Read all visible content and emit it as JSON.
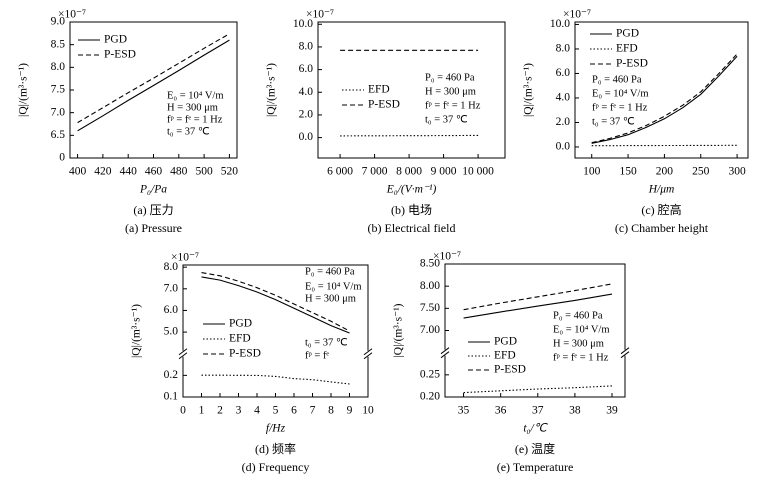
{
  "chart_data": [
    {
      "type": "line",
      "captions": [
        "(a) 压力",
        "(a) Pressure"
      ],
      "x_label": "P₀/Pa",
      "y_label": "|Q|/(m³·s⁻¹)",
      "y_multiplier": "×10⁻⁷",
      "x": [
        400,
        420,
        440,
        460,
        480,
        500,
        520
      ],
      "xlim": [
        394,
        526
      ],
      "xticks": [
        400,
        420,
        440,
        460,
        480,
        500,
        520
      ],
      "ylim": [
        0,
        9
      ],
      "yticks": [
        0,
        6.5,
        {
          "value": 7,
          "label": "7.0"
        },
        7.5,
        {
          "value": 8,
          "label": "8.0"
        },
        8.5,
        {
          "value": 9,
          "label": "9.0"
        }
      ],
      "ybreak": false,
      "series": [
        {
          "name": "PGD",
          "color": "#000000",
          "line_style": "solid",
          "values": [
            6.6,
            6.93,
            7.27,
            7.6,
            7.93,
            8.27,
            8.6
          ]
        },
        {
          "name": "P-ESD",
          "color": "#000000",
          "line_style": "dashed",
          "values": [
            6.78,
            7.11,
            7.44,
            7.76,
            8.09,
            8.42,
            8.74
          ]
        }
      ],
      "annotations": [
        "E₀ = 10⁴ V/m",
        "H = 300 μm",
        "fᵖ = fᵉ = 1 Hz",
        "t₀ = 37 ℃"
      ]
    },
    {
      "type": "line",
      "captions": [
        "(b) 电场",
        "(b) Electrical field"
      ],
      "x_label": "E₀/(V·m⁻¹)",
      "y_label": "|Q|/(m³·s⁻¹)",
      "y_multiplier": "×10⁻⁷",
      "x": [
        6000,
        7000,
        8000,
        9000,
        10000
      ],
      "xlim": [
        5360,
        10780
      ],
      "xticks": [
        {
          "value": 6000,
          "label": "6 000"
        },
        {
          "value": 7000,
          "label": "7 000"
        },
        {
          "value": 8000,
          "label": "8 000"
        },
        {
          "value": 9000,
          "label": "9 000"
        },
        {
          "value": 10000,
          "label": "10 000"
        }
      ],
      "ylim": [
        -1.8,
        10.2
      ],
      "yticks": [
        {
          "value": 0,
          "label": "0.0"
        },
        {
          "value": 2,
          "label": "2.0"
        },
        {
          "value": 4,
          "label": "4.0"
        },
        {
          "value": 6,
          "label": "6.0"
        },
        {
          "value": 8,
          "label": "8.0"
        },
        {
          "value": 10,
          "label": "10.0"
        }
      ],
      "ybreak": false,
      "series": [
        {
          "name": "EFD",
          "color": "#000000",
          "line_style": "dotted",
          "values": [
            0.15,
            0.16,
            0.17,
            0.18,
            0.19
          ]
        },
        {
          "name": "P-ESD",
          "color": "#000000",
          "line_style": "dashed",
          "values": [
            7.7,
            7.7,
            7.7,
            7.7,
            7.7
          ]
        }
      ],
      "annotations": [
        "P₀ = 460 Pa",
        "H = 300 μm",
        "fᵖ = fᵉ = 1 Hz",
        "t₀ = 37 ℃"
      ]
    },
    {
      "type": "line",
      "captions": [
        "(c) 腔高",
        "(c) Chamber height"
      ],
      "x_label": "H/μm",
      "y_label": "|Q|/(m³·s⁻¹)",
      "y_multiplier": "×10⁻⁷",
      "x": [
        100,
        125,
        150,
        175,
        200,
        225,
        250,
        275,
        300
      ],
      "xlim": [
        77,
        315
      ],
      "xticks": [
        100,
        150,
        200,
        250,
        300
      ],
      "ylim": [
        -0.9,
        10.2
      ],
      "yticks": [
        {
          "value": 0,
          "label": "0.0"
        },
        {
          "value": 2,
          "label": "2.0"
        },
        {
          "value": 4,
          "label": "4.0"
        },
        {
          "value": 6,
          "label": "6.0"
        },
        {
          "value": 8,
          "label": "8.0"
        },
        {
          "value": 10,
          "label": "10.0"
        }
      ],
      "ybreak": false,
      "series": [
        {
          "name": "PGD",
          "color": "#000000",
          "line_style": "solid",
          "values": [
            0.3,
            0.6,
            1.0,
            1.6,
            2.3,
            3.2,
            4.3,
            5.8,
            7.4
          ]
        },
        {
          "name": "EFD",
          "color": "#000000",
          "line_style": "dotted",
          "values": [
            0.1,
            0.1,
            0.11,
            0.11,
            0.12,
            0.12,
            0.13,
            0.13,
            0.14
          ]
        },
        {
          "name": "P-ESD",
          "color": "#000000",
          "line_style": "dashed",
          "values": [
            0.35,
            0.7,
            1.15,
            1.75,
            2.5,
            3.4,
            4.5,
            6.0,
            7.6
          ]
        }
      ],
      "annotations": [
        "P₀ = 460 Pa",
        "E₀ = 10⁴ V/m",
        "fᵖ = fᵉ = 1 Hz",
        "t₀ = 37 ℃"
      ]
    },
    {
      "type": "line",
      "captions": [
        "(d) 频率",
        "(d) Frequency"
      ],
      "x_label": "f/Hz",
      "y_label": "|Q|/(m³·s⁻¹)",
      "y_multiplier": "×10⁻⁷",
      "x": [
        1,
        2,
        3,
        4,
        5,
        6,
        7,
        8,
        9
      ],
      "xlim": [
        0,
        10
      ],
      "xticks": [
        0,
        1,
        2,
        3,
        4,
        5,
        6,
        7,
        8,
        9,
        10
      ],
      "ylim": [
        0.1,
        8.1
      ],
      "yticks": [
        0.1,
        0.2,
        {
          "value": 5,
          "label": "5.0"
        },
        {
          "value": 6,
          "label": "6.0"
        },
        {
          "value": 7,
          "label": "7.0"
        },
        {
          "value": 8,
          "label": "8.0"
        }
      ],
      "ybreak": true,
      "series": [
        {
          "name": "PGD",
          "color": "#000000",
          "line_style": "solid",
          "values": [
            7.55,
            7.4,
            7.15,
            6.85,
            6.5,
            6.1,
            5.7,
            5.3,
            4.9
          ]
        },
        {
          "name": "EFD",
          "color": "#000000",
          "line_style": "dotted",
          "values": [
            0.22,
            0.215,
            0.21,
            0.2,
            0.195,
            0.185,
            0.18,
            0.17,
            0.16
          ]
        },
        {
          "name": "P-ESD",
          "color": "#000000",
          "line_style": "dashed",
          "values": [
            7.75,
            7.6,
            7.35,
            7.05,
            6.7,
            6.3,
            5.9,
            5.5,
            5.05
          ]
        }
      ],
      "annotations": [
        "P₀ = 460 Pa",
        "E₀ = 10⁴ V/m",
        "H = 300 μm",
        "t₀ = 37 ℃",
        "fᵖ = fᵉ"
      ]
    },
    {
      "type": "line",
      "captions": [
        "(e) 温度",
        "(e) Temperature"
      ],
      "x_label": "t₀/℃",
      "y_label": "|Q|/(m³·s⁻¹)",
      "y_multiplier": "×10⁻⁷",
      "x": [
        35,
        36,
        37,
        38,
        39
      ],
      "xlim": [
        34.5,
        39.35
      ],
      "xticks": [
        35,
        36,
        37,
        38,
        39
      ],
      "ylim": [
        0.2,
        8.5
      ],
      "yticks": [
        {
          "value": 0.2,
          "label": "0.20"
        },
        0.25,
        {
          "value": 7,
          "label": "7.00"
        },
        {
          "value": 7.5,
          "label": "7.50"
        },
        {
          "value": 8,
          "label": "8.00"
        },
        {
          "value": 8.5,
          "label": "8.50"
        }
      ],
      "ybreak": true,
      "series": [
        {
          "name": "PGD",
          "color": "#000000",
          "line_style": "solid",
          "values": [
            7.28,
            7.42,
            7.55,
            7.68,
            7.82
          ]
        },
        {
          "name": "EFD",
          "color": "#000000",
          "line_style": "dotted",
          "values": [
            0.21,
            0.214,
            0.218,
            0.221,
            0.225
          ]
        },
        {
          "name": "P-ESD",
          "color": "#000000",
          "line_style": "dashed",
          "values": [
            7.47,
            7.62,
            7.76,
            7.9,
            8.05
          ]
        }
      ],
      "annotations": [
        "P₀ = 460 Pa",
        "E₀ = 10⁴ V/m",
        "H = 300 μm",
        "fᵖ = fᵉ = 1 Hz"
      ]
    }
  ]
}
